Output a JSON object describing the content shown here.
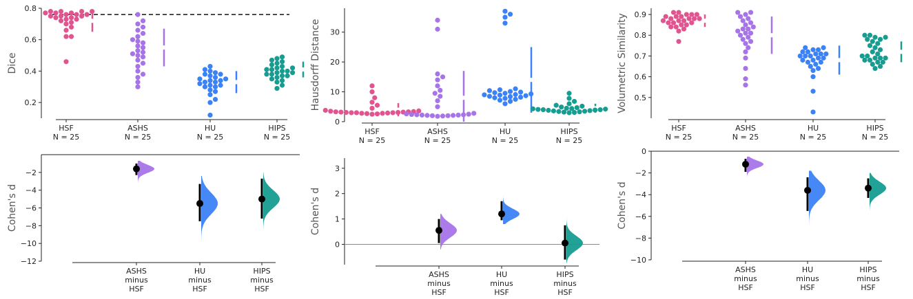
{
  "figure": {
    "colors": {
      "HSF": "#e0548f",
      "ASHS": "#a774e8",
      "HU": "#3b82f6",
      "HIPS": "#169c90",
      "zero": "#999999",
      "mean": "#000000"
    }
  },
  "chart_data": [
    {
      "id": "dice",
      "type": "scatter",
      "ylabel": "Dice",
      "ylim": [
        0.1,
        0.8
      ],
      "yticks": [
        0.2,
        0.4,
        0.6,
        0.8
      ],
      "ytick_labels": [
        "0.2",
        "0.4",
        "0.6",
        "0.8"
      ],
      "reference_line": 0.76,
      "categories": [
        "HSF",
        "ASHS",
        "HU",
        "HIPS"
      ],
      "n_labels": [
        "N = 25",
        "N = 25",
        "N = 25",
        "N = 25"
      ],
      "series": [
        {
          "name": "HSF",
          "values": [
            0.46,
            0.62,
            0.62,
            0.66,
            0.68,
            0.7,
            0.71,
            0.72,
            0.73,
            0.73,
            0.74,
            0.74,
            0.75,
            0.75,
            0.75,
            0.76,
            0.76,
            0.76,
            0.77,
            0.77,
            0.77,
            0.78,
            0.78,
            0.78,
            0.78
          ],
          "mean": 0.72,
          "sd": 0.07
        },
        {
          "name": "ASHS",
          "values": [
            0.3,
            0.33,
            0.36,
            0.38,
            0.4,
            0.43,
            0.45,
            0.47,
            0.49,
            0.5,
            0.51,
            0.52,
            0.53,
            0.55,
            0.56,
            0.58,
            0.59,
            0.6,
            0.62,
            0.64,
            0.66,
            0.68,
            0.7,
            0.72,
            0.76
          ],
          "mean": 0.55,
          "sd": 0.12
        },
        {
          "name": "HU",
          "values": [
            0.12,
            0.2,
            0.22,
            0.25,
            0.27,
            0.28,
            0.3,
            0.3,
            0.31,
            0.31,
            0.32,
            0.33,
            0.33,
            0.34,
            0.34,
            0.35,
            0.35,
            0.36,
            0.37,
            0.38,
            0.38,
            0.39,
            0.4,
            0.41,
            0.43
          ],
          "mean": 0.33,
          "sd": 0.07
        },
        {
          "name": "HIPS",
          "values": [
            0.29,
            0.31,
            0.33,
            0.34,
            0.35,
            0.36,
            0.37,
            0.37,
            0.38,
            0.38,
            0.39,
            0.39,
            0.4,
            0.4,
            0.41,
            0.41,
            0.42,
            0.42,
            0.43,
            0.44,
            0.45,
            0.46,
            0.47,
            0.48,
            0.49
          ],
          "mean": 0.41,
          "sd": 0.05
        }
      ]
    },
    {
      "id": "hausdorff",
      "type": "scatter",
      "ylabel": "Hausdorff Distance",
      "ylim": [
        0,
        38
      ],
      "yticks": [
        0,
        10,
        20,
        30
      ],
      "ytick_labels": [
        "0",
        "10",
        "20",
        "30"
      ],
      "categories": [
        "HSF",
        "ASHS",
        "HU",
        "HIPS"
      ],
      "n_labels": [
        "N = 25",
        "N = 25",
        "N = 25",
        "N = 25"
      ],
      "series": [
        {
          "name": "HSF",
          "values": [
            2.5,
            2.6,
            2.7,
            2.8,
            2.8,
            2.9,
            3.0,
            3.0,
            3.0,
            3.1,
            3.1,
            3.2,
            3.2,
            3.3,
            3.3,
            3.4,
            3.5,
            3.6,
            3.8,
            4.5,
            5.5,
            6.5,
            8.0,
            10.0,
            12.0
          ],
          "mean": 4.0,
          "sd": 2.2
        },
        {
          "name": "ASHS",
          "values": [
            1.8,
            1.9,
            2.0,
            2.0,
            2.1,
            2.1,
            2.2,
            2.2,
            2.3,
            2.3,
            2.4,
            2.5,
            2.6,
            2.8,
            5.0,
            7.0,
            8.5,
            9.5,
            10.5,
            12.0,
            14.0,
            15.0,
            16.0,
            31.0,
            34.0
          ],
          "mean": 8.0,
          "sd": 9.0
        },
        {
          "name": "HU",
          "values": [
            6.0,
            6.8,
            7.2,
            7.5,
            7.8,
            8.0,
            8.2,
            8.4,
            8.5,
            8.7,
            8.9,
            9.0,
            9.1,
            9.3,
            9.5,
            9.7,
            9.9,
            10.1,
            10.4,
            10.7,
            11.0,
            33.0,
            35.0,
            36.0,
            37.0
          ],
          "mean": 14.0,
          "sd": 11.0
        },
        {
          "name": "HIPS",
          "values": [
            3.0,
            3.1,
            3.2,
            3.3,
            3.4,
            3.5,
            3.6,
            3.7,
            3.8,
            3.9,
            4.0,
            4.0,
            4.1,
            4.2,
            4.3,
            4.4,
            4.5,
            4.7,
            4.9,
            5.2,
            5.5,
            6.0,
            6.8,
            7.8,
            9.5
          ],
          "mean": 4.5,
          "sd": 1.5
        }
      ]
    },
    {
      "id": "volsim",
      "type": "scatter",
      "ylabel": "Volumetric Similarity",
      "ylim": [
        0.4,
        0.93
      ],
      "yticks": [
        0.5,
        0.6,
        0.7,
        0.8,
        0.9
      ],
      "ytick_labels": [
        "0.5",
        "0.6",
        "0.7",
        "0.8",
        "0.9"
      ],
      "categories": [
        "HSF",
        "ASHS",
        "HU",
        "HIPS"
      ],
      "n_labels": [
        "N = 25",
        "N = 25",
        "N = 25",
        "N = 25"
      ],
      "series": [
        {
          "name": "HSF",
          "values": [
            0.77,
            0.82,
            0.83,
            0.84,
            0.84,
            0.85,
            0.85,
            0.86,
            0.86,
            0.86,
            0.87,
            0.87,
            0.87,
            0.88,
            0.88,
            0.88,
            0.88,
            0.89,
            0.89,
            0.89,
            0.9,
            0.9,
            0.9,
            0.91,
            0.91
          ],
          "mean": 0.87,
          "sd": 0.03
        },
        {
          "name": "ASHS",
          "values": [
            0.56,
            0.59,
            0.64,
            0.69,
            0.72,
            0.74,
            0.76,
            0.77,
            0.78,
            0.79,
            0.8,
            0.81,
            0.81,
            0.82,
            0.83,
            0.83,
            0.84,
            0.85,
            0.86,
            0.87,
            0.88,
            0.89,
            0.9,
            0.91,
            0.91
          ],
          "mean": 0.8,
          "sd": 0.09
        },
        {
          "name": "HU",
          "values": [
            0.43,
            0.53,
            0.6,
            0.63,
            0.64,
            0.65,
            0.66,
            0.67,
            0.67,
            0.68,
            0.68,
            0.69,
            0.69,
            0.7,
            0.7,
            0.7,
            0.71,
            0.71,
            0.71,
            0.72,
            0.72,
            0.73,
            0.73,
            0.74,
            0.74
          ],
          "mean": 0.68,
          "sd": 0.07
        },
        {
          "name": "HIPS",
          "values": [
            0.64,
            0.65,
            0.66,
            0.67,
            0.67,
            0.68,
            0.68,
            0.69,
            0.69,
            0.69,
            0.7,
            0.7,
            0.71,
            0.72,
            0.73,
            0.74,
            0.75,
            0.76,
            0.77,
            0.78,
            0.78,
            0.79,
            0.79,
            0.8,
            0.8
          ],
          "mean": 0.72,
          "sd": 0.05
        }
      ]
    },
    {
      "id": "cohen-dice",
      "type": "area",
      "ylabel": "Cohen's d",
      "ylim": [
        -12,
        0
      ],
      "yticks": [
        -12,
        -10,
        -8,
        -6,
        -4,
        -2
      ],
      "ytick_labels": [
        "−12",
        "−10",
        "−8",
        "−6",
        "−4",
        "−2"
      ],
      "zero_line": false,
      "categories": [
        "ASHS\nminus\nHSF",
        "HU\nminus\nHSF",
        "HIPS\nminus\nHSF"
      ],
      "series": [
        {
          "name": "ASHS",
          "estimate": -1.6,
          "ci": [
            -2.3,
            -1.0
          ],
          "dist_range": [
            -3.2,
            -0.7
          ],
          "dist_sd": 0.45
        },
        {
          "name": "HU",
          "estimate": -5.5,
          "ci": [
            -7.5,
            -3.3
          ],
          "dist_range": [
            -11.8,
            -2.4
          ],
          "dist_sd": 1.2
        },
        {
          "name": "HIPS",
          "estimate": -5.0,
          "ci": [
            -7.2,
            -2.7
          ],
          "dist_range": [
            -9.7,
            -2.0
          ],
          "dist_sd": 1.0
        }
      ]
    },
    {
      "id": "cohen-hausdorff",
      "type": "area",
      "ylabel": "Cohen's d",
      "ylim": [
        -0.8,
        3.4
      ],
      "yticks": [
        0,
        1,
        2,
        3
      ],
      "ytick_labels": [
        "0",
        "1",
        "2",
        "3"
      ],
      "zero_line": true,
      "categories": [
        "ASHS\nminus\nHSF",
        "HU\nminus\nHSF",
        "HIPS\nminus\nHSF"
      ],
      "series": [
        {
          "name": "ASHS",
          "estimate": 0.55,
          "ci": [
            0.05,
            1.0
          ],
          "dist_range": [
            -0.2,
            1.2
          ],
          "dist_sd": 0.28
        },
        {
          "name": "HU",
          "estimate": 1.2,
          "ci": [
            0.95,
            1.7
          ],
          "dist_range": [
            0.8,
            3.3
          ],
          "dist_sd": 0.2
        },
        {
          "name": "HIPS",
          "estimate": 0.05,
          "ci": [
            -0.6,
            0.75
          ],
          "dist_range": [
            -0.75,
            1.9
          ],
          "dist_sd": 0.28
        }
      ]
    },
    {
      "id": "cohen-volsim",
      "type": "area",
      "ylabel": "Cohen's d",
      "ylim": [
        -10,
        0
      ],
      "yticks": [
        -10,
        -8,
        -6,
        -4,
        -2,
        0
      ],
      "ytick_labels": [
        "−10",
        "−8",
        "−6",
        "−4",
        "−2",
        "0"
      ],
      "zero_line": false,
      "categories": [
        "ASHS\nminus\nHSF",
        "HU\nminus\nHSF",
        "HIPS\nminus\nHSF"
      ],
      "series": [
        {
          "name": "ASHS",
          "estimate": -1.2,
          "ci": [
            -1.9,
            -0.7
          ],
          "dist_range": [
            -2.5,
            -0.5
          ],
          "dist_sd": 0.35
        },
        {
          "name": "HU",
          "estimate": -3.6,
          "ci": [
            -5.5,
            -2.4
          ],
          "dist_range": [
            -9.5,
            -1.8
          ],
          "dist_sd": 0.9
        },
        {
          "name": "HIPS",
          "estimate": -3.4,
          "ci": [
            -4.3,
            -2.5
          ],
          "dist_range": [
            -6.3,
            -2.0
          ],
          "dist_sd": 0.6
        }
      ]
    }
  ]
}
